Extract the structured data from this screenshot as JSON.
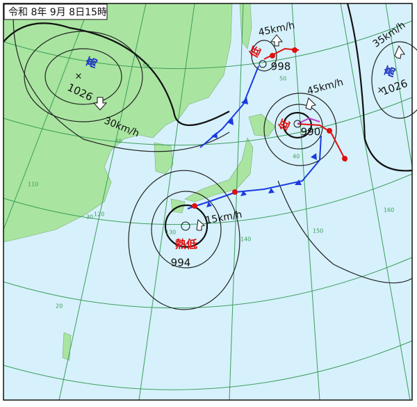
{
  "title": "令和 8年 9月 8日15時",
  "systems": [
    {
      "kind": "高",
      "pressure": "1026",
      "speed": "30km/h"
    },
    {
      "kind": "低",
      "pressure": "998",
      "speed": "45km/h"
    },
    {
      "kind": "低",
      "pressure": "990",
      "speed": "45km/h"
    },
    {
      "kind": "高",
      "pressure": "1026",
      "speed": "35km/h"
    },
    {
      "kind": "熱低",
      "pressure": "994",
      "speed": "15km/h"
    }
  ],
  "grid_labels": [
    "50",
    "40",
    "30",
    "20",
    "110",
    "120",
    "130",
    "140",
    "150",
    "160",
    "50",
    "40"
  ]
}
